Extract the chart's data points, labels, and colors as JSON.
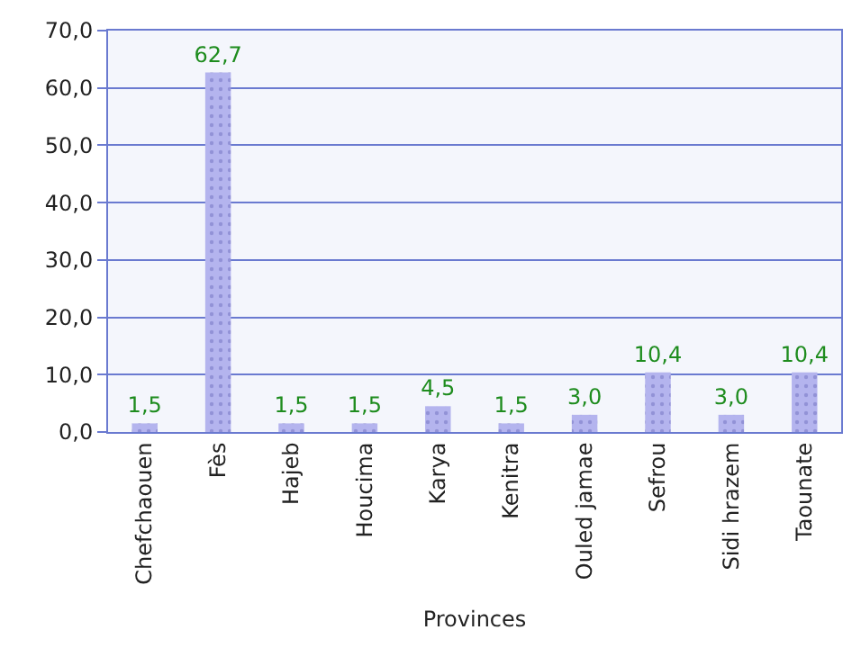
{
  "chart_data": {
    "type": "bar",
    "xlabel": "Provinces",
    "categories": [
      "Chefchaouen",
      "Fès",
      "Hajeb",
      "Houcima",
      "Karya",
      "Kenitra",
      "Ouled jamae",
      "Sefrou",
      "Sidi hrazem",
      "Taounate"
    ],
    "values": [
      1.5,
      62.7,
      1.5,
      1.5,
      4.5,
      1.5,
      3.0,
      10.4,
      3.0,
      10.4
    ],
    "value_labels": [
      "1,5",
      "62,7",
      "1,5",
      "1,5",
      "4,5",
      "1,5",
      "3,0",
      "10,4",
      "3,0",
      "10,4"
    ],
    "color": "#b4b4ee",
    "ylim": [
      0,
      70
    ],
    "yticks": [
      {
        "value": 0,
        "label": "0,0"
      },
      {
        "value": 10,
        "label": "10,0"
      },
      {
        "value": 20,
        "label": "20,0"
      },
      {
        "value": 30,
        "label": "30,0"
      },
      {
        "value": 40,
        "label": "40,0"
      },
      {
        "value": 50,
        "label": "50,0"
      },
      {
        "value": 60,
        "label": "60,0"
      },
      {
        "value": 70,
        "label": "70,0"
      }
    ],
    "grid": "y",
    "legend": false
  }
}
